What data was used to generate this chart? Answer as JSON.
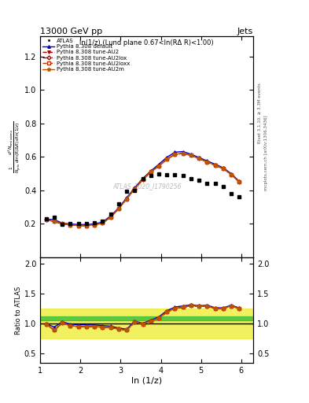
{
  "title": "13000 GeV pp",
  "title_right": "Jets",
  "subtitle": "ln(1/z) (Lund plane 0.67<ln(RΔ R)<1.00)",
  "watermark": "ATLAS_2020_I1790256",
  "xlabel": "ln (1/z)",
  "right_label_top": "Rivet 3.1.10, ≥ 3.3M events",
  "right_label_bottom": "mcplots.cern.ch [arXiv:1306.3436]",
  "xlim": [
    1.0,
    6.3
  ],
  "ylim_main": [
    0.0,
    1.32
  ],
  "ylim_ratio": [
    0.35,
    2.1
  ],
  "yticks_main": [
    0.2,
    0.4,
    0.6,
    0.8,
    1.0,
    1.2
  ],
  "yticks_ratio": [
    0.5,
    1.0,
    1.5,
    2.0
  ],
  "xticks": [
    1,
    2,
    3,
    4,
    5,
    6
  ],
  "atlas_x": [
    1.15,
    1.35,
    1.55,
    1.75,
    1.95,
    2.15,
    2.35,
    2.55,
    2.75,
    2.95,
    3.15,
    3.35,
    3.55,
    3.75,
    3.95,
    4.15,
    4.35,
    4.55,
    4.75,
    4.95,
    5.15,
    5.35,
    5.55,
    5.75,
    5.95
  ],
  "atlas_y": [
    0.228,
    0.24,
    0.198,
    0.202,
    0.2,
    0.2,
    0.205,
    0.218,
    0.258,
    0.318,
    0.393,
    0.4,
    0.468,
    0.488,
    0.5,
    0.492,
    0.493,
    0.488,
    0.47,
    0.46,
    0.442,
    0.44,
    0.424,
    0.383,
    0.36
  ],
  "pythia_x": [
    1.15,
    1.35,
    1.55,
    1.75,
    1.95,
    2.15,
    2.35,
    2.55,
    2.75,
    2.95,
    3.15,
    3.35,
    3.55,
    3.75,
    3.95,
    4.15,
    4.35,
    4.55,
    4.75,
    4.95,
    5.15,
    5.35,
    5.55,
    5.75,
    5.95
  ],
  "default_y": [
    0.228,
    0.226,
    0.204,
    0.2,
    0.196,
    0.196,
    0.2,
    0.211,
    0.247,
    0.295,
    0.356,
    0.416,
    0.471,
    0.516,
    0.556,
    0.598,
    0.628,
    0.632,
    0.616,
    0.596,
    0.576,
    0.556,
    0.535,
    0.5,
    0.454
  ],
  "au2_y": [
    0.226,
    0.214,
    0.2,
    0.195,
    0.19,
    0.19,
    0.195,
    0.205,
    0.24,
    0.29,
    0.35,
    0.41,
    0.465,
    0.51,
    0.546,
    0.586,
    0.616,
    0.62,
    0.61,
    0.59,
    0.57,
    0.55,
    0.53,
    0.495,
    0.45
  ],
  "au2lox_y": [
    0.226,
    0.214,
    0.2,
    0.195,
    0.19,
    0.19,
    0.195,
    0.205,
    0.24,
    0.29,
    0.35,
    0.41,
    0.465,
    0.51,
    0.546,
    0.586,
    0.616,
    0.62,
    0.61,
    0.59,
    0.57,
    0.55,
    0.53,
    0.495,
    0.45
  ],
  "au2loxx_y": [
    0.226,
    0.214,
    0.2,
    0.195,
    0.19,
    0.19,
    0.195,
    0.205,
    0.24,
    0.29,
    0.35,
    0.41,
    0.465,
    0.51,
    0.546,
    0.586,
    0.616,
    0.62,
    0.61,
    0.59,
    0.57,
    0.55,
    0.53,
    0.495,
    0.45
  ],
  "au2m_y": [
    0.226,
    0.214,
    0.2,
    0.195,
    0.19,
    0.19,
    0.195,
    0.205,
    0.24,
    0.29,
    0.35,
    0.41,
    0.465,
    0.51,
    0.546,
    0.586,
    0.616,
    0.62,
    0.61,
    0.59,
    0.57,
    0.55,
    0.53,
    0.495,
    0.45
  ],
  "ratio_default": [
    1.0,
    0.942,
    1.03,
    0.99,
    0.98,
    0.98,
    0.976,
    0.968,
    0.957,
    0.927,
    0.906,
    1.04,
    1.006,
    1.057,
    1.112,
    1.215,
    1.275,
    1.294,
    1.311,
    1.296,
    1.305,
    1.263,
    1.262,
    1.305,
    1.261
  ],
  "ratio_au2": [
    0.991,
    0.892,
    1.01,
    0.967,
    0.95,
    0.95,
    0.951,
    0.94,
    0.93,
    0.912,
    0.891,
    1.025,
    0.994,
    1.045,
    1.092,
    1.192,
    1.25,
    1.27,
    1.298,
    1.283,
    1.29,
    1.25,
    1.25,
    1.292,
    1.25
  ],
  "ratio_au2lox": [
    0.991,
    0.892,
    1.01,
    0.967,
    0.95,
    0.95,
    0.951,
    0.94,
    0.93,
    0.912,
    0.891,
    1.025,
    0.994,
    1.045,
    1.092,
    1.192,
    1.25,
    1.27,
    1.298,
    1.283,
    1.29,
    1.25,
    1.25,
    1.292,
    1.25
  ],
  "ratio_au2loxx": [
    0.991,
    0.892,
    1.01,
    0.967,
    0.95,
    0.95,
    0.951,
    0.94,
    0.93,
    0.912,
    0.891,
    1.025,
    0.994,
    1.045,
    1.092,
    1.192,
    1.25,
    1.27,
    1.298,
    1.283,
    1.29,
    1.25,
    1.25,
    1.292,
    1.25
  ],
  "ratio_au2m": [
    0.991,
    0.892,
    1.01,
    0.967,
    0.95,
    0.95,
    0.951,
    0.94,
    0.93,
    0.912,
    0.891,
    1.025,
    0.994,
    1.045,
    1.092,
    1.192,
    1.25,
    1.27,
    1.298,
    1.283,
    1.29,
    1.25,
    1.25,
    1.292,
    1.25
  ],
  "band_yellow_lo": 0.75,
  "band_yellow_hi": 1.25,
  "band_green_lo": 1.05,
  "band_green_hi": 1.12,
  "color_default": "#0000cc",
  "color_au2": "#aa0000",
  "color_au2lox": "#aa0000",
  "color_au2loxx": "#bb3300",
  "color_au2m": "#bb5500",
  "color_atlas": "#000000",
  "color_green_band": "#33bb33",
  "color_yellow_band": "#eeee44",
  "legend_entries": [
    "ATLAS",
    "Pythia 8.308 default",
    "Pythia 8.308 tune-AU2",
    "Pythia 8.308 tune-AU2lox",
    "Pythia 8.308 tune-AU2loxx",
    "Pythia 8.308 tune-AU2m"
  ]
}
